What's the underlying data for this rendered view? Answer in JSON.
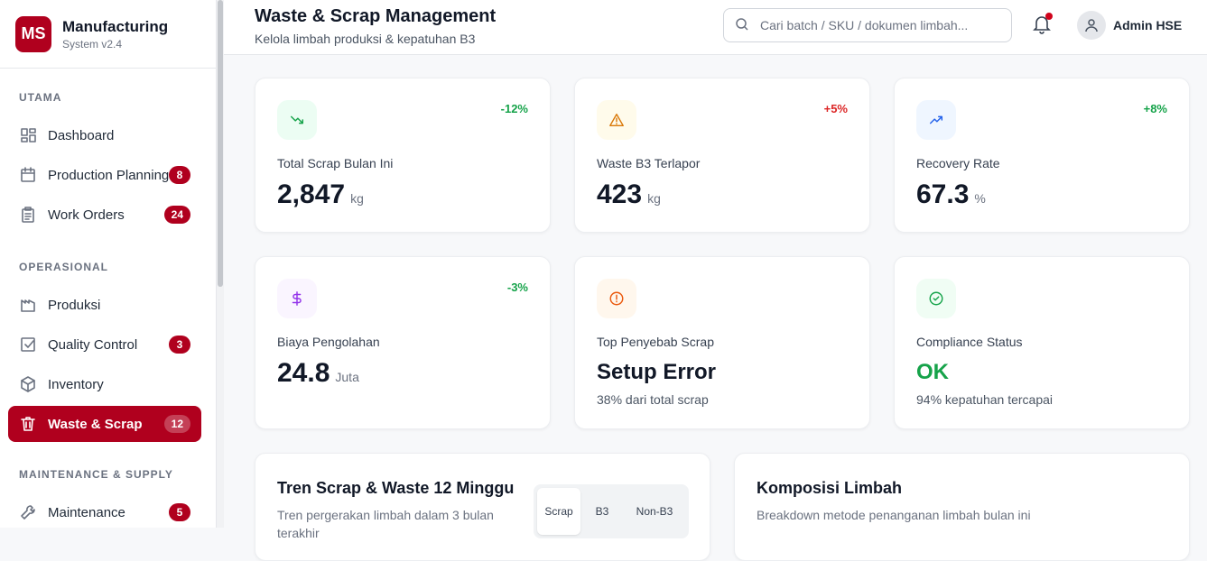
{
  "brand": {
    "logo": "MS",
    "name": "Manufacturing",
    "version": "System v2.4"
  },
  "sidebar": {
    "sections": [
      {
        "title": "UTAMA",
        "items": [
          {
            "label": "Dashboard",
            "icon": "grid-icon"
          },
          {
            "label": "Production Planning",
            "badge": "8",
            "icon": "calendar-icon"
          },
          {
            "label": "Work Orders",
            "badge": "24",
            "icon": "clipboard-icon"
          }
        ]
      },
      {
        "title": "OPERASIONAL",
        "items": [
          {
            "label": "Produksi",
            "icon": "factory-icon"
          },
          {
            "label": "Quality Control",
            "badge": "3",
            "icon": "checkbox-icon"
          },
          {
            "label": "Inventory",
            "icon": "box-icon"
          },
          {
            "label": "Waste & Scrap",
            "badge": "12",
            "icon": "trash-icon",
            "active": true
          }
        ]
      },
      {
        "title": "MAINTENANCE & SUPPLY",
        "items": [
          {
            "label": "Maintenance",
            "badge": "5",
            "icon": "wrench-icon"
          }
        ]
      }
    ]
  },
  "header": {
    "title": "Waste & Scrap Management",
    "subtitle": "Kelola limbah produksi & kepatuhan B3",
    "search_placeholder": "Cari batch / SKU / dokumen limbah...",
    "user": "Admin HSE"
  },
  "kpis": [
    {
      "label": "Total Scrap Bulan Ini",
      "value": "2,847",
      "unit": "kg",
      "delta": "-12%",
      "delta_color": "#16a34a",
      "icon": "trending-down-icon",
      "icon_color": "#16a34a",
      "icon_bg": "#ecfdf3"
    },
    {
      "label": "Waste B3 Terlapor",
      "value": "423",
      "unit": "kg",
      "delta": "+5%",
      "delta_color": "#dc2626",
      "icon": "warning-icon",
      "icon_color": "#d97706",
      "icon_bg": "#fffbeb"
    },
    {
      "label": "Recovery Rate",
      "value": "67.3",
      "unit": "%",
      "delta": "+8%",
      "delta_color": "#16a34a",
      "icon": "trending-up-icon",
      "icon_color": "#2563eb",
      "icon_bg": "#eff6ff"
    },
    {
      "label": "Biaya Pengolahan",
      "value": "24.8",
      "unit": "Juta",
      "delta": "-3%",
      "delta_color": "#16a34a",
      "icon": "dollar-icon",
      "icon_color": "#9333ea",
      "icon_bg": "#faf5ff"
    },
    {
      "label": "Top Penyebab Scrap",
      "value": "Setup Error",
      "sub": "38% dari total scrap",
      "icon": "alert-circle-icon",
      "icon_color": "#ea580c",
      "icon_bg": "#fff7ed"
    },
    {
      "label": "Compliance Status",
      "value": "OK",
      "value_color": "#16a34a",
      "sub": "94% kepatuhan tercapai",
      "icon": "check-circle-icon",
      "icon_color": "#16a34a",
      "icon_bg": "#f0fdf4"
    }
  ],
  "trend_card": {
    "title": "Tren Scrap & Waste 12 Minggu",
    "subtitle": "Tren pergerakan limbah dalam 3 bulan terakhir",
    "tabs": [
      "Scrap",
      "B3",
      "Non-B3"
    ],
    "active_tab": "Scrap"
  },
  "composition_card": {
    "title": "Komposisi Limbah",
    "subtitle": "Breakdown metode penanganan limbah bulan ini"
  }
}
